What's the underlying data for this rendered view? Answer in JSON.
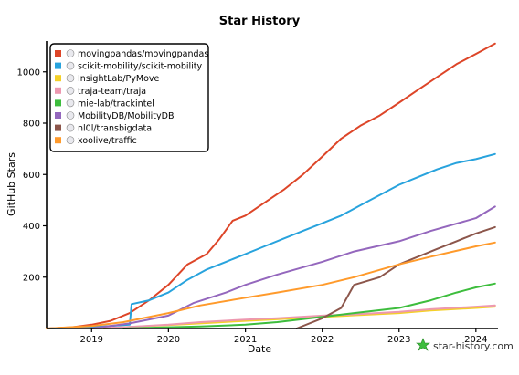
{
  "chart_data": {
    "type": "line",
    "title": "Star History",
    "xlabel": "Date",
    "ylabel": "GitHub Stars",
    "ylim": [
      0,
      1120
    ],
    "xlim": [
      "2018-06-01",
      "2024-04-15"
    ],
    "yticks": [
      200,
      400,
      600,
      800,
      1000
    ],
    "xticks": [
      {
        "date": "2019-01-01",
        "label": "2019"
      },
      {
        "date": "2020-01-01",
        "label": "2020"
      },
      {
        "date": "2021-01-01",
        "label": "2021"
      },
      {
        "date": "2022-01-01",
        "label": "2022"
      },
      {
        "date": "2023-01-01",
        "label": "2023"
      },
      {
        "date": "2024-01-01",
        "label": "2024"
      }
    ],
    "grid": false,
    "legend_position": "top-left",
    "series": [
      {
        "name": "movingpandas/movingpandas",
        "color": "#dd4528",
        "points": [
          [
            "2018-06-01",
            0
          ],
          [
            "2018-10-01",
            5
          ],
          [
            "2019-01-01",
            15
          ],
          [
            "2019-04-01",
            30
          ],
          [
            "2019-07-01",
            60
          ],
          [
            "2019-10-01",
            110
          ],
          [
            "2020-01-01",
            170
          ],
          [
            "2020-04-01",
            250
          ],
          [
            "2020-07-01",
            290
          ],
          [
            "2020-09-01",
            350
          ],
          [
            "2020-11-01",
            420
          ],
          [
            "2021-01-01",
            440
          ],
          [
            "2021-04-01",
            490
          ],
          [
            "2021-07-01",
            540
          ],
          [
            "2021-10-01",
            600
          ],
          [
            "2022-01-01",
            670
          ],
          [
            "2022-04-01",
            740
          ],
          [
            "2022-07-01",
            790
          ],
          [
            "2022-10-01",
            830
          ],
          [
            "2023-01-01",
            880
          ],
          [
            "2023-04-01",
            930
          ],
          [
            "2023-07-01",
            980
          ],
          [
            "2023-10-01",
            1030
          ],
          [
            "2024-01-01",
            1070
          ],
          [
            "2024-04-01",
            1110
          ]
        ]
      },
      {
        "name": "scikit-mobility/scikit-mobility",
        "color": "#28a3dd",
        "points": [
          [
            "2018-06-01",
            0
          ],
          [
            "2018-10-01",
            2
          ],
          [
            "2019-01-01",
            5
          ],
          [
            "2019-04-01",
            10
          ],
          [
            "2019-07-01",
            15
          ],
          [
            "2019-07-10",
            95
          ],
          [
            "2019-10-01",
            110
          ],
          [
            "2020-01-01",
            140
          ],
          [
            "2020-04-01",
            190
          ],
          [
            "2020-07-01",
            230
          ],
          [
            "2020-10-01",
            260
          ],
          [
            "2021-01-01",
            290
          ],
          [
            "2021-04-01",
            320
          ],
          [
            "2021-07-01",
            350
          ],
          [
            "2021-10-01",
            380
          ],
          [
            "2022-01-01",
            410
          ],
          [
            "2022-04-01",
            440
          ],
          [
            "2022-07-01",
            480
          ],
          [
            "2022-10-01",
            520
          ],
          [
            "2023-01-01",
            560
          ],
          [
            "2023-04-01",
            590
          ],
          [
            "2023-07-01",
            620
          ],
          [
            "2023-10-01",
            645
          ],
          [
            "2024-01-01",
            660
          ],
          [
            "2024-04-01",
            680
          ]
        ]
      },
      {
        "name": "InsightLab/PyMove",
        "color": "#f4d028",
        "points": [
          [
            "2019-03-01",
            0
          ],
          [
            "2019-06-01",
            5
          ],
          [
            "2019-10-01",
            10
          ],
          [
            "2020-06-01",
            20
          ],
          [
            "2021-01-01",
            30
          ],
          [
            "2022-01-01",
            45
          ],
          [
            "2023-01-01",
            60
          ],
          [
            "2023-06-01",
            70
          ],
          [
            "2024-01-01",
            80
          ],
          [
            "2024-04-01",
            85
          ]
        ]
      },
      {
        "name": "traja-team/traja",
        "color": "#ed98b0",
        "points": [
          [
            "2019-01-01",
            0
          ],
          [
            "2019-06-01",
            5
          ],
          [
            "2020-01-01",
            15
          ],
          [
            "2020-06-01",
            25
          ],
          [
            "2021-01-01",
            35
          ],
          [
            "2021-06-01",
            40
          ],
          [
            "2022-01-01",
            50
          ],
          [
            "2022-06-01",
            55
          ],
          [
            "2023-01-01",
            65
          ],
          [
            "2023-06-01",
            75
          ],
          [
            "2024-01-01",
            85
          ],
          [
            "2024-04-01",
            90
          ]
        ]
      },
      {
        "name": "mie-lab/trackintel",
        "color": "#3dbd3d",
        "points": [
          [
            "2019-06-01",
            0
          ],
          [
            "2020-01-01",
            5
          ],
          [
            "2020-06-01",
            8
          ],
          [
            "2021-01-01",
            15
          ],
          [
            "2021-06-01",
            25
          ],
          [
            "2022-01-01",
            45
          ],
          [
            "2022-06-01",
            60
          ],
          [
            "2023-01-01",
            80
          ],
          [
            "2023-06-01",
            110
          ],
          [
            "2023-10-01",
            140
          ],
          [
            "2024-01-01",
            160
          ],
          [
            "2024-04-01",
            175
          ]
        ]
      },
      {
        "name": "MobilityDB/MobilityDB",
        "color": "#9467bd",
        "points": [
          [
            "2019-01-01",
            0
          ],
          [
            "2019-07-01",
            20
          ],
          [
            "2020-01-01",
            50
          ],
          [
            "2020-05-01",
            100
          ],
          [
            "2020-10-01",
            140
          ],
          [
            "2021-01-01",
            170
          ],
          [
            "2021-06-01",
            210
          ],
          [
            "2022-01-01",
            260
          ],
          [
            "2022-06-01",
            300
          ],
          [
            "2023-01-01",
            340
          ],
          [
            "2023-06-01",
            380
          ],
          [
            "2024-01-01",
            430
          ],
          [
            "2024-04-01",
            475
          ]
        ]
      },
      {
        "name": "nl0l/transbigdata",
        "color": "#8c564b",
        "points": [
          [
            "2021-09-01",
            0
          ],
          [
            "2022-01-01",
            40
          ],
          [
            "2022-04-01",
            80
          ],
          [
            "2022-06-01",
            170
          ],
          [
            "2022-10-01",
            200
          ],
          [
            "2023-01-01",
            250
          ],
          [
            "2023-04-01",
            280
          ],
          [
            "2023-07-01",
            310
          ],
          [
            "2023-10-01",
            340
          ],
          [
            "2024-01-01",
            370
          ],
          [
            "2024-04-01",
            395
          ]
        ]
      },
      {
        "name": "xoolive/traffic",
        "color": "#ff9a2b",
        "points": [
          [
            "2018-06-01",
            0
          ],
          [
            "2019-01-01",
            10
          ],
          [
            "2019-06-01",
            25
          ],
          [
            "2020-01-01",
            60
          ],
          [
            "2020-06-01",
            90
          ],
          [
            "2021-01-01",
            120
          ],
          [
            "2021-06-01",
            140
          ],
          [
            "2022-01-01",
            170
          ],
          [
            "2022-06-01",
            200
          ],
          [
            "2023-01-01",
            250
          ],
          [
            "2023-06-01",
            280
          ],
          [
            "2024-01-01",
            320
          ],
          [
            "2024-04-01",
            335
          ]
        ]
      }
    ]
  },
  "watermark": "star-history.com"
}
